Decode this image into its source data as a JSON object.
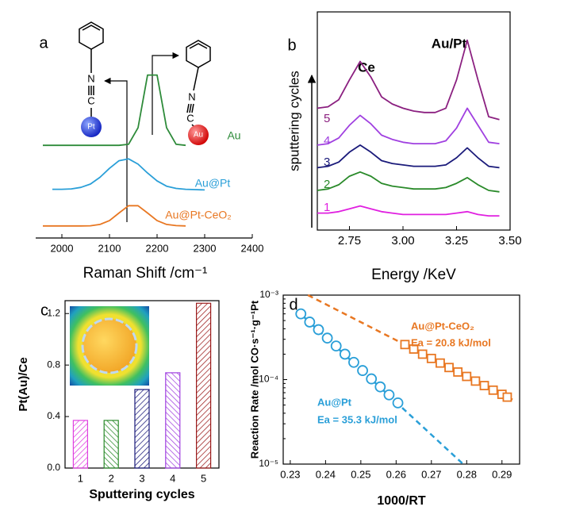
{
  "chart_data": [
    {
      "type": "line",
      "panel": "a",
      "xlabel": "Raman Shift /cm⁻¹",
      "xlim": [
        1950,
        2400
      ],
      "xticks": [
        2000,
        2100,
        2200,
        2300,
        2400
      ],
      "ylim": [
        0,
        13
      ],
      "x": [
        1960,
        1980,
        2000,
        2020,
        2040,
        2060,
        2080,
        2100,
        2120,
        2140,
        2160,
        2180,
        2200,
        2220,
        2240,
        2260,
        2280,
        2300
      ],
      "series": [
        {
          "name": "Au",
          "color": "#2e8b3a",
          "values": [
            6.0,
            6.0,
            6.0,
            6.0,
            6.0,
            6.0,
            6.0,
            6.0,
            6.0,
            6.07,
            7.2,
            10.8,
            10.8,
            7.2,
            6.07,
            6.0,
            null,
            null
          ]
        },
        {
          "name": "Au@Pt",
          "color": "#2a9fd8",
          "values": [
            null,
            3.0,
            3.0,
            3.03,
            3.13,
            3.36,
            3.82,
            4.43,
            4.95,
            5.08,
            4.72,
            4.11,
            3.57,
            3.21,
            3.06,
            3.0,
            2.98,
            2.96
          ]
        },
        {
          "name": "Au@Pt-CeO₂",
          "color": "#e87722",
          "values": [
            0.5,
            0.5,
            0.5,
            0.5,
            0.5,
            0.51,
            0.6,
            0.86,
            1.38,
            1.88,
            1.88,
            1.38,
            0.86,
            0.6,
            0.52,
            0.5,
            null,
            null
          ]
        }
      ],
      "molecule_labels": [
        "N",
        "C",
        "Pt",
        "N",
        "C",
        "Au"
      ]
    },
    {
      "type": "line",
      "panel": "b",
      "xlabel": "Energy /KeV",
      "ylabel": "sputtering cycles",
      "annotations": [
        "Ce",
        "Au/Pt"
      ],
      "xlim": [
        2.6,
        3.5
      ],
      "xticks": [
        2.75,
        {
          "value": 3.0,
          "label": "3.00"
        },
        3.25,
        {
          "value": 3.5,
          "label": "3.50"
        }
      ],
      "ylim": [
        0.3,
        8
      ],
      "x": [
        2.6,
        2.65,
        2.7,
        2.75,
        2.8,
        2.85,
        2.9,
        2.95,
        3.0,
        3.05,
        3.1,
        3.15,
        3.2,
        3.25,
        3.3,
        3.35,
        3.4,
        3.45
      ],
      "series": [
        {
          "name": "1",
          "color": "#e020e0",
          "values": [
            0.9,
            0.9,
            0.95,
            1.05,
            1.15,
            1.05,
            0.95,
            0.9,
            0.85,
            0.85,
            0.85,
            0.85,
            0.85,
            0.9,
            0.95,
            0.85,
            0.8,
            0.8
          ]
        },
        {
          "name": "2",
          "color": "#2a8a2a",
          "values": [
            1.7,
            1.75,
            1.9,
            2.2,
            2.35,
            2.2,
            1.95,
            1.85,
            1.8,
            1.75,
            1.75,
            1.75,
            1.8,
            1.95,
            2.15,
            1.9,
            1.7,
            1.65
          ]
        },
        {
          "name": "3",
          "color": "#1a1a7a",
          "values": [
            2.5,
            2.55,
            2.7,
            3.05,
            3.3,
            3.05,
            2.75,
            2.65,
            2.6,
            2.55,
            2.55,
            2.55,
            2.6,
            2.85,
            3.2,
            2.85,
            2.55,
            2.5
          ]
        },
        {
          "name": "4",
          "color": "#a040e0",
          "values": [
            3.3,
            3.35,
            3.55,
            4.0,
            4.35,
            4.05,
            3.65,
            3.5,
            3.4,
            3.35,
            3.35,
            3.35,
            3.45,
            3.9,
            4.6,
            4.0,
            3.4,
            3.35
          ]
        },
        {
          "name": "5",
          "color": "#8b2080",
          "values": [
            4.6,
            4.65,
            4.9,
            5.6,
            6.25,
            5.7,
            5.0,
            4.75,
            4.6,
            4.5,
            4.45,
            4.45,
            4.6,
            5.6,
            7.0,
            5.6,
            4.3,
            4.2
          ]
        }
      ]
    },
    {
      "type": "bar",
      "panel": "c",
      "xlabel": "Sputtering cycles",
      "ylabel": "Pt(Au)/Ce",
      "categories": [
        "1",
        "2",
        "3",
        "4",
        "5"
      ],
      "values": [
        0.37,
        0.37,
        0.61,
        0.74,
        1.28
      ],
      "colors": [
        "#e040e0",
        "#2a8a2a",
        "#1a1a7a",
        "#a040e0",
        "#9b1b1b"
      ],
      "ylim": [
        0,
        1.3
      ],
      "yticks": [
        {
          "value": 0,
          "label": "0.0"
        },
        0.4,
        0.8,
        1.2
      ]
    },
    {
      "type": "scatter",
      "panel": "d",
      "xlabel": "1000/RT",
      "ylabel": "Reaction Rate /mol CO·s⁻¹·g⁻¹Pt",
      "log_y": true,
      "xlim": [
        0.228,
        0.295
      ],
      "xticks": [
        0.23,
        0.24,
        0.25,
        0.26,
        0.27,
        0.28,
        0.29
      ],
      "ylim": [
        1e-05,
        0.001
      ],
      "yticks": [
        {
          "value": 1e-05,
          "label": "10⁻⁵"
        },
        {
          "value": 0.0001,
          "label": "10⁻⁴"
        },
        {
          "value": 0.001,
          "label": "10⁻³"
        }
      ],
      "series": [
        {
          "name": "Au@Pt",
          "color": "#2a9fd8",
          "marker": "circle",
          "annotation": "Ea = 35.3 kJ/mol",
          "x": [
            0.233,
            0.2355,
            0.238,
            0.2405,
            0.243,
            0.2455,
            0.248,
            0.2505,
            0.253,
            0.2555,
            0.258,
            0.2605
          ],
          "values": [
            0.0006,
            0.00048,
            0.00039,
            0.00031,
            0.00025,
            0.0002,
            0.00016,
            0.000128,
            0.000102,
            8.2e-05,
            6.6e-05,
            5.3e-05
          ],
          "fit_x": [
            0.232,
            0.279
          ],
          "fit_values": [
            0.00065,
            1e-05
          ]
        },
        {
          "name": "Au@Pt-CeO₂",
          "color": "#e87722",
          "marker": "square",
          "annotation": "Ea = 20.8 kJ/mol",
          "x": [
            0.2625,
            0.265,
            0.2675,
            0.27,
            0.2725,
            0.275,
            0.2775,
            0.28,
            0.2825,
            0.285,
            0.2875,
            0.29,
            0.2915
          ],
          "values": [
            0.00026,
            0.00023,
            0.0002,
            0.000178,
            0.000157,
            0.000139,
            0.000123,
            0.000109,
            9.6e-05,
            8.5e-05,
            7.5e-05,
            6.7e-05,
            6.2e-05
          ],
          "fit_x": [
            0.235,
            0.293
          ],
          "fit_values": [
            0.001,
            5.8e-05
          ]
        }
      ]
    }
  ]
}
